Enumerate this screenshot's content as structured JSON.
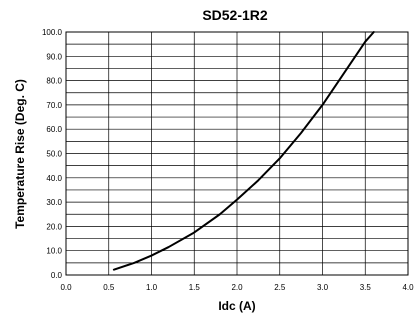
{
  "chart_data": {
    "type": "line",
    "title": "SD52-1R2",
    "xlabel": "Idc (A)",
    "ylabel": "Temperature Rise (Deg. C)",
    "xlim": [
      0,
      4
    ],
    "ylim": [
      0,
      100
    ],
    "x_ticks": [
      "0.0",
      "0.5",
      "1.0",
      "1.5",
      "2.0",
      "2.5",
      "3.0",
      "3.5",
      "4.0"
    ],
    "y_ticks": [
      "0.0",
      "10.0",
      "20.0",
      "30.0",
      "40.0",
      "50.0",
      "60.0",
      "70.0",
      "80.0",
      "90.0",
      "100.0"
    ],
    "grid": true,
    "minor_gridlines": true,
    "line_color": "#000000",
    "series": [
      {
        "name": "",
        "x": [
          0.56,
          0.8,
          1.0,
          1.2,
          1.5,
          1.8,
          2.0,
          2.25,
          2.5,
          2.75,
          3.0,
          3.25,
          3.5,
          3.6
        ],
        "y": [
          2.2,
          5.0,
          8.0,
          11.5,
          17.5,
          25.0,
          31.0,
          39.0,
          48.0,
          58.5,
          70.0,
          83.0,
          96.0,
          100.0
        ]
      }
    ]
  }
}
